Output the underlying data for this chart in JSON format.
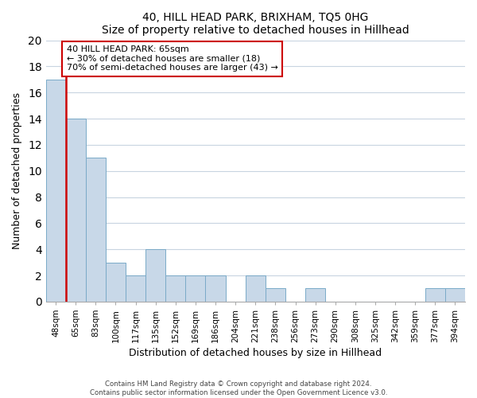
{
  "title": "40, HILL HEAD PARK, BRIXHAM, TQ5 0HG",
  "subtitle": "Size of property relative to detached houses in Hillhead",
  "xlabel": "Distribution of detached houses by size in Hillhead",
  "ylabel": "Number of detached properties",
  "bar_labels": [
    "48sqm",
    "65sqm",
    "83sqm",
    "100sqm",
    "117sqm",
    "135sqm",
    "152sqm",
    "169sqm",
    "186sqm",
    "204sqm",
    "221sqm",
    "238sqm",
    "256sqm",
    "273sqm",
    "290sqm",
    "308sqm",
    "325sqm",
    "342sqm",
    "359sqm",
    "377sqm",
    "394sqm"
  ],
  "bar_values": [
    17,
    14,
    11,
    3,
    2,
    4,
    2,
    2,
    2,
    0,
    2,
    1,
    0,
    1,
    0,
    0,
    0,
    0,
    0,
    1,
    1
  ],
  "bar_color": "#c8d8e8",
  "bar_edge_color": "#7aaac8",
  "highlight_line_index": 1,
  "highlight_color": "#cc0000",
  "ylim": [
    0,
    20
  ],
  "yticks": [
    0,
    2,
    4,
    6,
    8,
    10,
    12,
    14,
    16,
    18,
    20
  ],
  "annotation_box_text": "40 HILL HEAD PARK: 65sqm\n← 30% of detached houses are smaller (18)\n70% of semi-detached houses are larger (43) →",
  "annotation_box_edge_color": "#cc0000",
  "footer_line1": "Contains HM Land Registry data © Crown copyright and database right 2024.",
  "footer_line2": "Contains public sector information licensed under the Open Government Licence v3.0.",
  "bg_color": "#ffffff",
  "grid_color": "#c8d4e0"
}
